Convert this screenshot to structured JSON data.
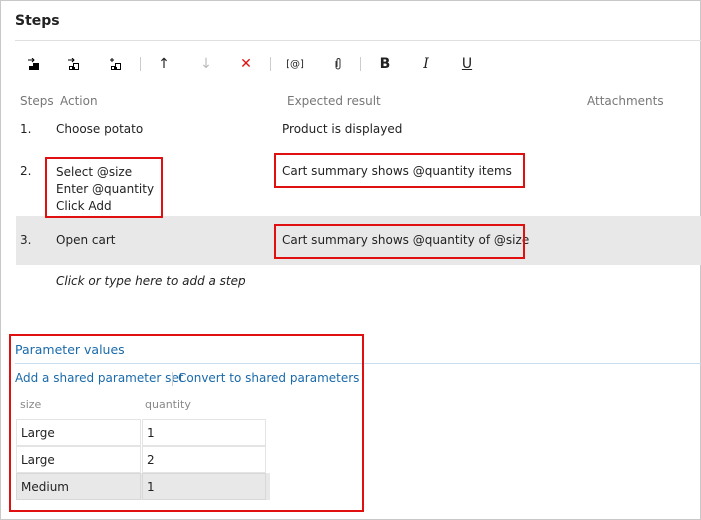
{
  "title": "Steps",
  "toolbar": {
    "insert_step": "insert-step-icon",
    "insert_shared_steps": "insert-shared-steps-icon",
    "create_shared_steps": "create-shared-steps-icon",
    "move_up": "↑",
    "move_down": "↓",
    "delete": "✕",
    "parameter": "[@]",
    "attach": "paperclip-icon",
    "bold": "B",
    "italic": "I",
    "underline": "U"
  },
  "headers": {
    "steps": "Steps",
    "action": "Action",
    "expected": "Expected result",
    "attachments": "Attachments"
  },
  "steps": [
    {
      "num": "1.",
      "action": [
        "Choose potato"
      ],
      "expected": "Product is displayed"
    },
    {
      "num": "2.",
      "action": [
        "Select @size",
        "Enter @quantity",
        "Click Add"
      ],
      "expected": "Cart summary shows @quantity items"
    },
    {
      "num": "3.",
      "action": [
        "Open cart"
      ],
      "expected": "Cart summary shows @quantity of @size"
    }
  ],
  "add_step_hint": "Click or type here to add a step",
  "params": {
    "title": "Parameter values",
    "add_shared": "Add a shared parameter set",
    "convert": "Convert to shared parameters",
    "columns": [
      "size",
      "quantity"
    ],
    "rows": [
      [
        "Large",
        "1"
      ],
      [
        "Large",
        "2"
      ],
      [
        "Medium",
        "1"
      ]
    ]
  },
  "colors": {
    "highlight": "#e01010",
    "link": "#1a6aaa",
    "selected_row": "#e8e8e8"
  }
}
